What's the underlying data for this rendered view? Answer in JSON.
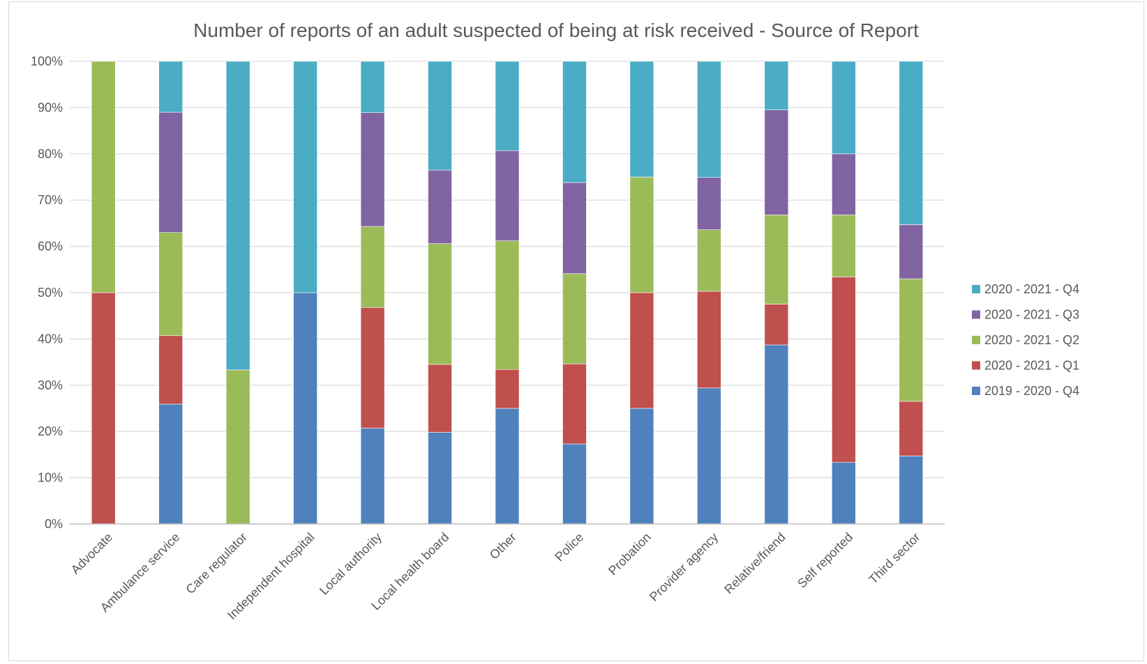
{
  "chart_data": {
    "type": "bar",
    "stacked": "percent",
    "title": "Number of reports of an adult suspected of being at risk received - Source of Report",
    "xlabel": "",
    "ylabel": "",
    "ylim": [
      0,
      100
    ],
    "y_ticks": [
      "0%",
      "10%",
      "20%",
      "30%",
      "40%",
      "50%",
      "60%",
      "70%",
      "80%",
      "90%",
      "100%"
    ],
    "grid": true,
    "legend_position": "right",
    "categories": [
      "Advocate",
      "Ambulance service",
      "Care regulator",
      "Independent hospital",
      "Local authority",
      "Local health board",
      "Other",
      "Police",
      "Probation",
      "Provider agency",
      "Relative/friend",
      "Self reported",
      "Third sector"
    ],
    "series": [
      {
        "name": "2019 - 2020 - Q4",
        "color": "#4f81bd",
        "values": [
          0,
          25.9,
          0,
          50,
          20.7,
          19.8,
          25,
          17.3,
          25,
          29.4,
          38.7,
          13.3,
          14.7
        ]
      },
      {
        "name": "2020 - 2021 - Q1",
        "color": "#c0504d",
        "values": [
          50,
          14.8,
          0,
          0,
          26.1,
          14.7,
          8.4,
          17.3,
          25,
          20.9,
          8.8,
          40.1,
          11.8
        ]
      },
      {
        "name": "2020 - 2021 - Q2",
        "color": "#9bbb59",
        "values": [
          50,
          22.3,
          33.3,
          0,
          17.5,
          26.1,
          27.8,
          19.5,
          25,
          13.3,
          19.3,
          13.4,
          26.5
        ]
      },
      {
        "name": "2020 - 2021 - Q3",
        "color": "#8064a2",
        "values": [
          0,
          26,
          0,
          0,
          24.6,
          15.9,
          19.5,
          19.7,
          0,
          11.3,
          22.7,
          13.2,
          11.7
        ]
      },
      {
        "name": "2020 - 2021 - Q4",
        "color": "#4bacc6",
        "values": [
          0,
          11,
          66.7,
          50,
          11.1,
          23.5,
          19.3,
          26.2,
          25,
          25.1,
          10.5,
          20,
          35.3
        ]
      }
    ]
  }
}
